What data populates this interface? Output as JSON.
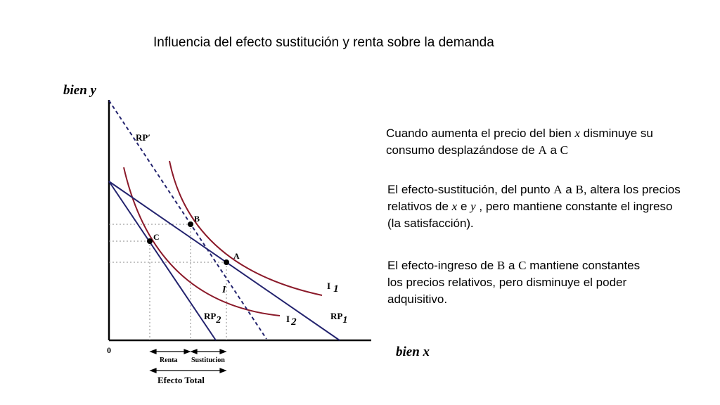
{
  "title": "Influencia del efecto sustitución y renta sobre la demanda",
  "diagram": {
    "y_axis_label": "bien y",
    "x_axis_label": "bien x",
    "origin_label": "0",
    "budget_lines": {
      "rp_prime": "RP′",
      "rp1": "RP",
      "rp1_sub": "1",
      "rp2": "RP",
      "rp2_sub": "2"
    },
    "indifference": {
      "i1": "I",
      "i1_sub": "1",
      "i2": "I",
      "i2_sub": "2",
      "i_mid": "I"
    },
    "points": {
      "a": "A",
      "b": "B",
      "c": "C"
    },
    "effects": {
      "renta": "Renta",
      "sustitucion": "Sustitucion",
      "total": "Efecto Total"
    }
  },
  "text_blocks": {
    "block1": {
      "p1": "Cuando aumenta el precio del bien ",
      "x": "x",
      "p2": " disminuye su consumo desplazándose de ",
      "a": "A",
      "p3": " a ",
      "c": "C"
    },
    "block2": {
      "p1": "El efecto-sustitución, del punto ",
      "a": "A",
      "p2": " a ",
      "b": "B",
      "p3": ", altera los precios relativos de ",
      "x": "x",
      "p4": " e ",
      "y": "y",
      "p5": " , pero mantiene constante el ingreso (la satisfacción)",
      "p6": "."
    },
    "block3": {
      "p1": "El efecto-ingreso de ",
      "b": "B",
      "p2": " a ",
      "c": "C",
      "p3": " mantiene constantes los precios relativos, pero disminuye el poder adquisitivo."
    }
  }
}
